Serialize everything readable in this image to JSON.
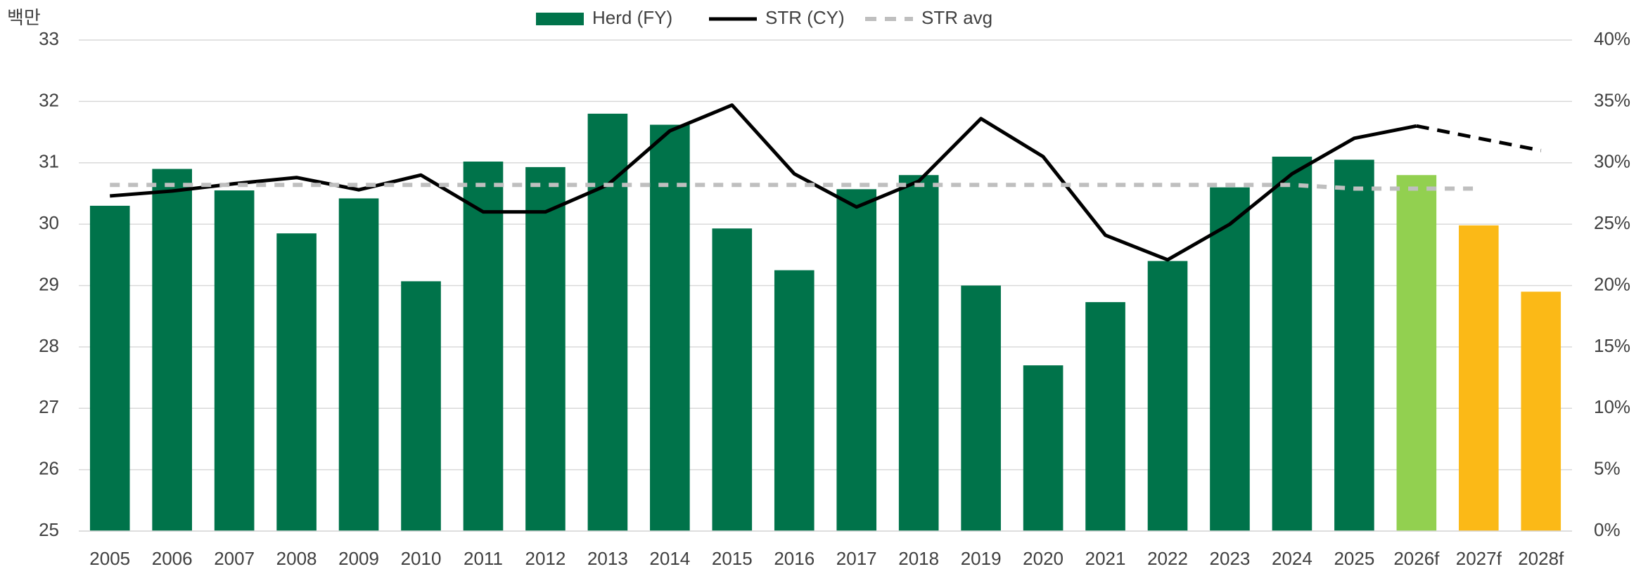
{
  "chart_data": {
    "type": "bar-line",
    "unit_label": "백만",
    "categories": [
      "2005",
      "2006",
      "2007",
      "2008",
      "2009",
      "2010",
      "2011",
      "2012",
      "2013",
      "2014",
      "2015",
      "2016",
      "2017",
      "2018",
      "2019",
      "2020",
      "2021",
      "2022",
      "2023",
      "2024",
      "2025",
      "2026f",
      "2027f",
      "2028f"
    ],
    "series": [
      {
        "name": "Herd (FY)",
        "type": "bar",
        "color": "#00734a",
        "colors": [
          "#00734a",
          "#00734a",
          "#00734a",
          "#00734a",
          "#00734a",
          "#00734a",
          "#00734a",
          "#00734a",
          "#00734a",
          "#00734a",
          "#00734a",
          "#00734a",
          "#00734a",
          "#00734a",
          "#00734a",
          "#00734a",
          "#00734a",
          "#00734a",
          "#00734a",
          "#00734a",
          "#00734a",
          "#92d050",
          "#fbb917",
          "#fbb917"
        ],
        "values": [
          30.3,
          30.9,
          30.55,
          29.85,
          30.42,
          29.07,
          31.02,
          30.93,
          31.8,
          31.62,
          29.93,
          29.25,
          30.57,
          30.8,
          29.0,
          27.7,
          28.73,
          29.4,
          30.6,
          31.1,
          31.05,
          30.8,
          29.98,
          28.9
        ]
      },
      {
        "name": "STR (CY)",
        "type": "line",
        "axis": "y2",
        "color": "#000000",
        "values": [
          27.3,
          27.7,
          28.3,
          28.8,
          27.8,
          29.0,
          26.0,
          26.0,
          28.2,
          32.6,
          34.7,
          29.1,
          26.4,
          28.5,
          33.6,
          30.5,
          24.1,
          22.1,
          25.0,
          29.1,
          32.0,
          33.0,
          null,
          null
        ],
        "forecast_values": [
          null,
          null,
          null,
          null,
          null,
          null,
          null,
          null,
          null,
          null,
          null,
          null,
          null,
          null,
          null,
          null,
          null,
          null,
          null,
          null,
          null,
          33.0,
          32.0,
          31.0
        ]
      },
      {
        "name": "STR avg",
        "type": "line",
        "axis": "y2",
        "dashed": true,
        "color": "#bfbfbf",
        "values": [
          28.2,
          28.2,
          28.2,
          28.2,
          28.2,
          28.2,
          28.2,
          28.2,
          28.2,
          28.2,
          28.2,
          28.2,
          28.2,
          28.2,
          28.2,
          28.2,
          28.2,
          28.2,
          28.2,
          28.2,
          27.9,
          27.9,
          27.9,
          null
        ]
      }
    ],
    "ylim": [
      25,
      33
    ],
    "yticks": [
      25,
      26,
      27,
      28,
      29,
      30,
      31,
      32,
      33
    ],
    "y2lim": [
      0,
      40
    ],
    "y2ticks": [
      {
        "value": 0,
        "label": "0%"
      },
      {
        "value": 5,
        "label": "5%"
      },
      {
        "value": 10,
        "label": "10%"
      },
      {
        "value": 15,
        "label": "15%"
      },
      {
        "value": 20,
        "label": "20%"
      },
      {
        "value": 25,
        "label": "25%"
      },
      {
        "value": 30,
        "label": "30%"
      },
      {
        "value": 35,
        "label": "35%"
      },
      {
        "value": 40,
        "label": "40%"
      }
    ],
    "grid": true,
    "legend": "top"
  }
}
